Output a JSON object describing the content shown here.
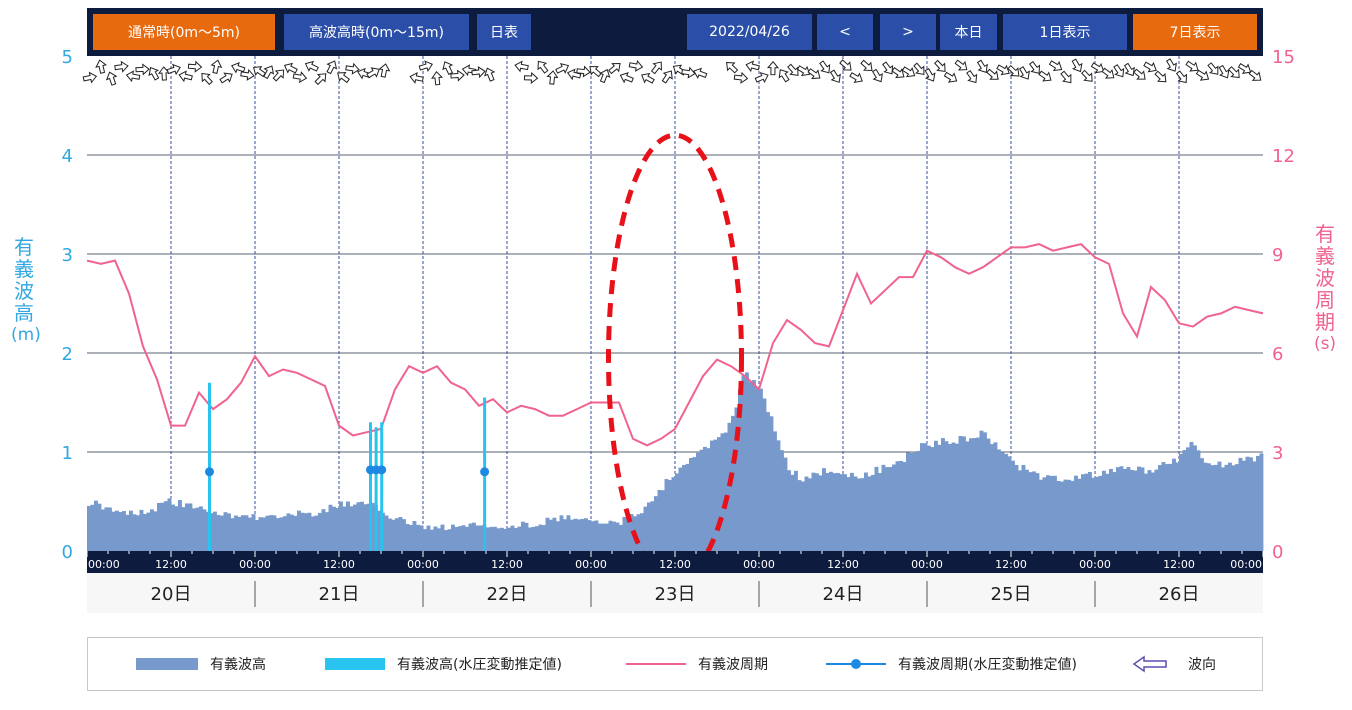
{
  "toolbar": {
    "normal_label": "通常時(0m～5m)",
    "high_label": "高波高時(0m～15m)",
    "table_label": "日表",
    "date_label": "2022/04/26",
    "prev_label": "<",
    "next_label": ">",
    "today_label": "本日",
    "day1_label": "1日表示",
    "day7_label": "7日表示"
  },
  "axes": {
    "left_title": [
      "有",
      "義",
      "波",
      "高",
      "(m)"
    ],
    "right_title": [
      "有",
      "義",
      "波",
      "周",
      "期",
      "(s)"
    ],
    "left_ticks": [
      "0",
      "1",
      "2",
      "3",
      "4",
      "5"
    ],
    "right_ticks": [
      "0",
      "3",
      "6",
      "9",
      "12",
      "15"
    ],
    "time_tick_labels": [
      "00:00",
      "12:00"
    ],
    "day_labels": [
      "20日",
      "21日",
      "22日",
      "23日",
      "24日",
      "25日",
      "26日"
    ]
  },
  "legend": {
    "height_label": "有義波高",
    "height_est_label": "有義波高(水圧変動推定値)",
    "period_label": "有義波周期",
    "period_est_label": "有義波周期(水圧変動推定値)",
    "direction_label": "波向"
  },
  "colors": {
    "toolbar_bg": "#0d1b3f",
    "button_blue": "#2b4fa8",
    "button_orange": "#e86a0f",
    "wave_height_fill": "#7799cc",
    "wave_height_est": "#29c3f0",
    "wave_period_line": "#f0638f",
    "period_est_line": "#1e88e5",
    "left_axis": "#33a8e0",
    "right_axis": "#f0638f",
    "highlight": "#e8111a"
  },
  "chart_data": {
    "type": "area",
    "x_unit": "hours since 2022-04-20 00:00",
    "xlim": [
      0,
      168
    ],
    "ylim_left": [
      0,
      5
    ],
    "ylim_right": [
      0,
      15
    ],
    "ylabel_left": "有義波高(m)",
    "ylabel_right": "有義波周期(s)",
    "series": [
      {
        "name": "有義波高",
        "axis": "left",
        "kind": "area",
        "x": [
          0,
          4,
          8,
          12,
          16,
          20,
          24,
          28,
          32,
          36,
          40,
          44,
          48,
          52,
          56,
          60,
          64,
          68,
          72,
          76,
          80,
          84,
          88,
          90,
          92,
          94,
          96,
          98,
          100,
          102,
          104,
          106,
          108,
          110,
          112,
          114,
          116,
          118,
          120,
          124,
          128,
          130,
          132,
          136,
          140,
          144,
          148,
          152,
          156,
          158,
          160,
          164,
          168
        ],
        "y": [
          0.5,
          0.42,
          0.38,
          0.5,
          0.42,
          0.36,
          0.34,
          0.38,
          0.36,
          0.46,
          0.48,
          0.32,
          0.25,
          0.24,
          0.26,
          0.26,
          0.28,
          0.33,
          0.33,
          0.28,
          0.45,
          0.8,
          1.05,
          1.1,
          1.3,
          1.8,
          1.65,
          1.3,
          0.85,
          0.73,
          0.78,
          0.82,
          0.76,
          0.75,
          0.8,
          0.84,
          0.9,
          1.0,
          1.08,
          1.12,
          1.18,
          1.05,
          0.9,
          0.75,
          0.72,
          0.78,
          0.82,
          0.82,
          0.92,
          1.12,
          0.85,
          0.9,
          0.95
        ]
      },
      {
        "name": "有義波周期",
        "axis": "right",
        "kind": "line",
        "x": [
          0,
          2,
          4,
          6,
          8,
          10,
          12,
          14,
          16,
          18,
          20,
          22,
          24,
          26,
          28,
          30,
          32,
          34,
          36,
          38,
          40,
          42,
          44,
          46,
          48,
          50,
          52,
          54,
          56,
          58,
          60,
          62,
          64,
          66,
          68,
          70,
          72,
          74,
          76,
          78,
          80,
          82,
          84,
          86,
          88,
          90,
          92,
          94,
          96,
          98,
          100,
          102,
          104,
          106,
          108,
          110,
          112,
          114,
          116,
          118,
          120,
          122,
          124,
          126,
          128,
          130,
          132,
          134,
          136,
          138,
          140,
          142,
          144,
          146,
          148,
          150,
          152,
          154,
          156,
          158,
          160,
          162,
          164,
          166,
          168
        ],
        "y": [
          8.8,
          8.7,
          8.8,
          7.8,
          6.2,
          5.2,
          3.8,
          3.8,
          4.8,
          4.3,
          4.6,
          5.1,
          5.9,
          5.3,
          5.5,
          5.4,
          5.2,
          5.0,
          3.8,
          3.5,
          3.6,
          3.7,
          4.9,
          5.6,
          5.4,
          5.6,
          5.1,
          4.9,
          4.4,
          4.6,
          4.2,
          4.4,
          4.3,
          4.1,
          4.1,
          4.3,
          4.5,
          4.5,
          4.5,
          3.4,
          3.2,
          3.4,
          3.7,
          4.5,
          5.3,
          5.8,
          5.6,
          5.3,
          4.9,
          6.3,
          7.0,
          6.7,
          6.3,
          6.2,
          7.3,
          8.4,
          7.5,
          7.9,
          8.3,
          8.3,
          9.1,
          8.9,
          8.6,
          8.4,
          8.6,
          8.9,
          9.2,
          9.2,
          9.3,
          9.1,
          9.2,
          9.3,
          8.9,
          8.7,
          7.2,
          6.5,
          8.0,
          7.6,
          6.9,
          6.8,
          7.1,
          7.2,
          7.4,
          7.3,
          7.2
        ]
      },
      {
        "name": "有義波高(水圧変動推定値)",
        "axis": "left",
        "kind": "spikes",
        "x": [
          17.5,
          40.5,
          41.3,
          42.1,
          56.8
        ],
        "y": [
          1.7,
          1.3,
          1.25,
          1.3,
          1.55
        ]
      },
      {
        "name": "有義波周期(水圧変動推定値)",
        "axis": "left",
        "kind": "points",
        "x": [
          17.5,
          40.5,
          41.3,
          42.1,
          56.8
        ],
        "y": [
          0.8,
          0.82,
          0.82,
          0.82,
          0.8
        ]
      }
    ],
    "wave_direction": "arrows along top of chart",
    "annotation": {
      "shape": "dashed ellipse",
      "center_x": 84,
      "center_y": 1.95,
      "radius_x": 9.5,
      "radius_y": 2.25
    },
    "grid": true,
    "legend_position": "bottom"
  }
}
